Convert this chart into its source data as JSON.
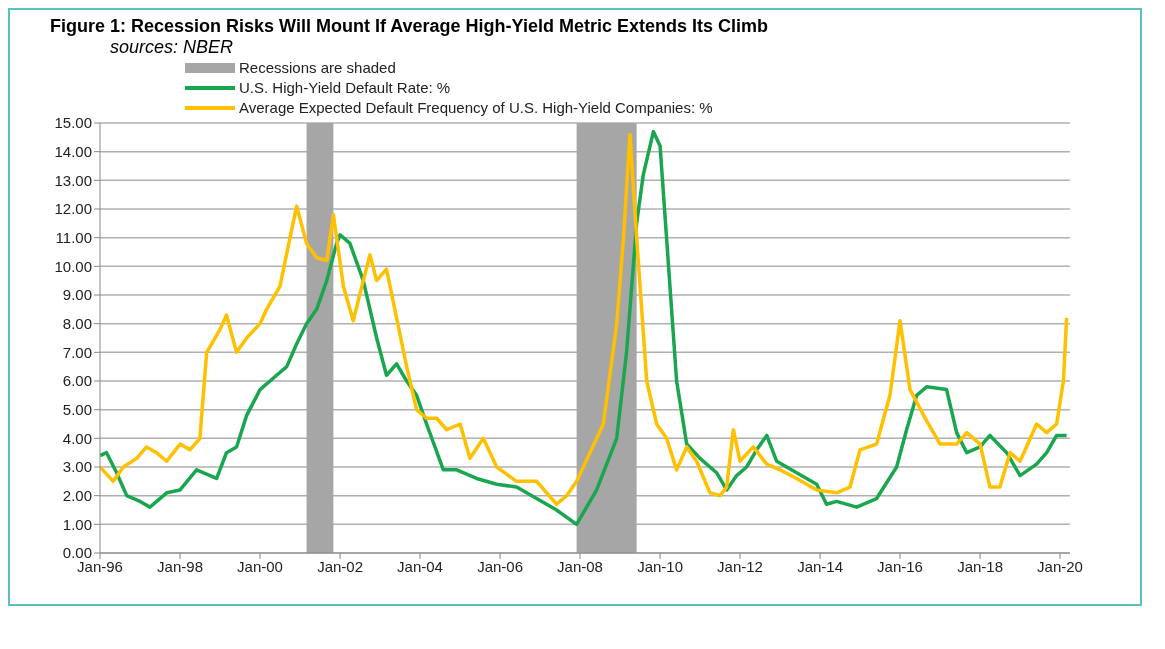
{
  "chart_data": {
    "type": "line",
    "title": "Figure 1: Recession Risks Will Mount If Average High-Yield Metric Extends Its Climb",
    "subtitle": "sources: NBER",
    "xlim": [
      "1996-01",
      "2020-04"
    ],
    "xticks": [
      {
        "value": "1996-01",
        "label": "Jan-96"
      },
      {
        "value": "1998-01",
        "label": "Jan-98"
      },
      {
        "value": "2000-01",
        "label": "Jan-00"
      },
      {
        "value": "2002-01",
        "label": "Jan-02"
      },
      {
        "value": "2004-01",
        "label": "Jan-04"
      },
      {
        "value": "2006-01",
        "label": "Jan-06"
      },
      {
        "value": "2008-01",
        "label": "Jan-08"
      },
      {
        "value": "2010-01",
        "label": "Jan-10"
      },
      {
        "value": "2012-01",
        "label": "Jan-12"
      },
      {
        "value": "2014-01",
        "label": "Jan-14"
      },
      {
        "value": "2016-01",
        "label": "Jan-16"
      },
      {
        "value": "2018-01",
        "label": "Jan-18"
      },
      {
        "value": "2020-01",
        "label": "Jan-20"
      }
    ],
    "ylim": [
      0,
      15
    ],
    "yticks": [
      {
        "value": 0,
        "label": "0.00"
      },
      {
        "value": 1,
        "label": "1.00"
      },
      {
        "value": 2,
        "label": "2.00"
      },
      {
        "value": 3,
        "label": "3.00"
      },
      {
        "value": 4,
        "label": "4.00"
      },
      {
        "value": 5,
        "label": "5.00"
      },
      {
        "value": 6,
        "label": "6.00"
      },
      {
        "value": 7,
        "label": "7.00"
      },
      {
        "value": 8,
        "label": "8.00"
      },
      {
        "value": 9,
        "label": "9.00"
      },
      {
        "value": 10,
        "label": "10.00"
      },
      {
        "value": 11,
        "label": "11.00"
      },
      {
        "value": 12,
        "label": "12.00"
      },
      {
        "value": 13,
        "label": "13.00"
      },
      {
        "value": 14,
        "label": "14.00"
      },
      {
        "value": 15,
        "label": "15.00"
      }
    ],
    "grid": "y",
    "legend": "top left",
    "line_style": "solid",
    "marker": "none",
    "bands": [
      {
        "axis": "x",
        "from": "2001-03",
        "to": "2001-11",
        "label": "Recessions are shaded",
        "color": "#a6a6a6"
      },
      {
        "axis": "x",
        "from": "2007-12",
        "to": "2009-06",
        "color": "#a6a6a6"
      }
    ],
    "series": [
      {
        "name": "U.S. High-Yield Default Rate: %",
        "color": "#1aa64f",
        "x": [
          "1996-01",
          "1996-03",
          "1996-06",
          "1996-09",
          "1997-01",
          "1997-04",
          "1997-09",
          "1998-01",
          "1998-06",
          "1998-12",
          "1999-03",
          "1999-06",
          "1999-09",
          "2000-01",
          "2000-06",
          "2000-09",
          "2000-12",
          "2001-03",
          "2001-06",
          "2001-09",
          "2001-12",
          "2002-01",
          "2002-04",
          "2002-08",
          "2002-12",
          "2003-03",
          "2003-06",
          "2003-09",
          "2003-12",
          "2004-03",
          "2004-08",
          "2004-12",
          "2005-06",
          "2005-12",
          "2006-06",
          "2006-12",
          "2007-06",
          "2007-12",
          "2008-06",
          "2008-12",
          "2009-03",
          "2009-06",
          "2009-08",
          "2009-11",
          "2010-01",
          "2010-03",
          "2010-06",
          "2010-09",
          "2011-01",
          "2011-06",
          "2011-09",
          "2011-12",
          "2012-03",
          "2012-06",
          "2012-09",
          "2012-12",
          "2013-06",
          "2013-12",
          "2014-03",
          "2014-06",
          "2014-12",
          "2015-06",
          "2015-12",
          "2016-03",
          "2016-06",
          "2016-09",
          "2017-03",
          "2017-06",
          "2017-09",
          "2018-01",
          "2018-04",
          "2018-09",
          "2019-01",
          "2019-06",
          "2019-09",
          "2019-12",
          "2020-03"
        ],
        "values": [
          3.4,
          3.5,
          2.8,
          2.0,
          1.8,
          1.6,
          2.1,
          2.2,
          2.9,
          2.6,
          3.5,
          3.7,
          4.8,
          5.7,
          6.2,
          6.5,
          7.3,
          8.0,
          8.5,
          9.5,
          10.8,
          11.1,
          10.8,
          9.5,
          7.5,
          6.2,
          6.6,
          6.0,
          5.5,
          4.5,
          2.9,
          2.9,
          2.6,
          2.4,
          2.3,
          1.9,
          1.5,
          1.0,
          2.2,
          4.0,
          7.0,
          11.5,
          13.2,
          14.7,
          14.2,
          11.0,
          6.0,
          3.8,
          3.3,
          2.8,
          2.2,
          2.7,
          3.0,
          3.6,
          4.1,
          3.2,
          2.8,
          2.4,
          1.7,
          1.8,
          1.6,
          1.9,
          3.0,
          4.3,
          5.5,
          5.8,
          5.7,
          4.2,
          3.5,
          3.7,
          4.1,
          3.5,
          2.7,
          3.1,
          3.5,
          4.1,
          4.1
        ]
      },
      {
        "name": "Average Expected Default Frequency of U.S. High-Yield Companies: %",
        "color": "#ffc000",
        "x": [
          "1996-01",
          "1996-05",
          "1996-08",
          "1996-12",
          "1997-03",
          "1997-06",
          "1997-09",
          "1998-01",
          "1998-04",
          "1998-07",
          "1998-09",
          "1999-01",
          "1999-03",
          "1999-06",
          "1999-09",
          "2000-01",
          "2000-03",
          "2000-07",
          "2000-10",
          "2000-12",
          "2001-03",
          "2001-06",
          "2001-09",
          "2001-11",
          "2002-02",
          "2002-05",
          "2002-08",
          "2002-10",
          "2002-12",
          "2003-03",
          "2003-09",
          "2003-12",
          "2004-03",
          "2004-06",
          "2004-09",
          "2005-01",
          "2005-04",
          "2005-08",
          "2005-12",
          "2006-06",
          "2006-12",
          "2007-06",
          "2007-09",
          "2007-12",
          "2008-04",
          "2008-08",
          "2008-12",
          "2009-02",
          "2009-04",
          "2009-06",
          "2009-09",
          "2009-12",
          "2010-03",
          "2010-06",
          "2010-09",
          "2010-12",
          "2011-04",
          "2011-07",
          "2011-09",
          "2011-11",
          "2012-01",
          "2012-05",
          "2012-09",
          "2013-01",
          "2013-06",
          "2013-12",
          "2014-06",
          "2014-10",
          "2015-01",
          "2015-06",
          "2015-10",
          "2016-01",
          "2016-04",
          "2016-09",
          "2017-01",
          "2017-06",
          "2017-09",
          "2018-01",
          "2018-04",
          "2018-07",
          "2018-10",
          "2019-01",
          "2019-06",
          "2019-09",
          "2019-12",
          "2020-02",
          "2020-03"
        ],
        "values": [
          3.0,
          2.5,
          3.0,
          3.3,
          3.7,
          3.5,
          3.2,
          3.8,
          3.6,
          4.0,
          7.0,
          7.8,
          8.3,
          7.0,
          7.5,
          8.0,
          8.5,
          9.3,
          11.0,
          12.1,
          10.8,
          10.3,
          10.2,
          11.8,
          9.3,
          8.1,
          9.5,
          10.4,
          9.5,
          9.9,
          6.5,
          5.0,
          4.7,
          4.7,
          4.3,
          4.5,
          3.3,
          4.0,
          3.0,
          2.5,
          2.5,
          1.7,
          2.0,
          2.5,
          3.5,
          4.5,
          8.0,
          11.0,
          14.6,
          11.0,
          6.0,
          4.5,
          4.0,
          2.9,
          3.7,
          3.2,
          2.1,
          2.0,
          2.3,
          4.3,
          3.2,
          3.7,
          3.1,
          2.9,
          2.6,
          2.2,
          2.1,
          2.3,
          3.6,
          3.8,
          5.5,
          8.1,
          5.7,
          4.6,
          3.8,
          3.8,
          4.2,
          3.8,
          2.3,
          2.3,
          3.5,
          3.2,
          4.5,
          4.2,
          4.5,
          6.0,
          8.2
        ]
      }
    ]
  }
}
